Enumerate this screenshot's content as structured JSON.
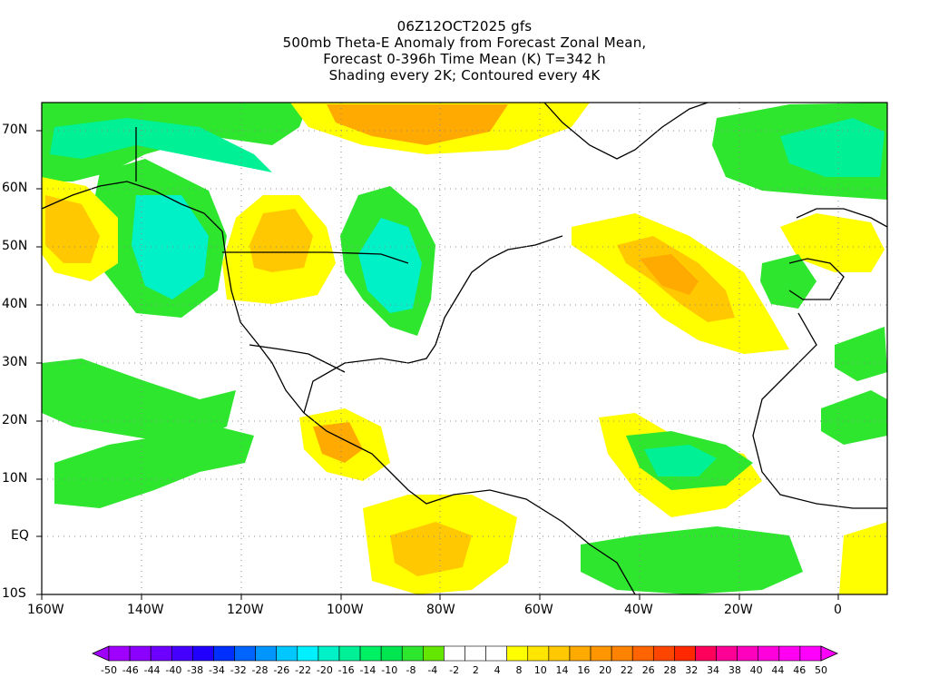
{
  "titles": {
    "line1": "06Z12OCT2025 gfs",
    "line2": "500mb Theta-E Anomaly from Forecast Zonal Mean,",
    "line3": "Forecast 0-396h Time Mean (K) T=342 h",
    "line4": "Shading every 2K; Contoured every 4K"
  },
  "axes": {
    "lat_labels": [
      "70N",
      "60N",
      "50N",
      "40N",
      "30N",
      "20N",
      "10N",
      "EQ",
      "10S"
    ],
    "lon_labels": [
      "160W",
      "140W",
      "120W",
      "100W",
      "80W",
      "60W",
      "40W",
      "20W",
      "0"
    ],
    "lon_range": [
      -160,
      10
    ],
    "lat_range": [
      -10,
      75
    ]
  },
  "colorbar": {
    "labels": [
      "-50",
      "-46",
      "-44",
      "-40",
      "-38",
      "-34",
      "-32",
      "-28",
      "-26",
      "-22",
      "-20",
      "-16",
      "-14",
      "-10",
      "-8",
      "-4",
      "-2",
      "2",
      "4",
      "8",
      "10",
      "14",
      "16",
      "20",
      "22",
      "26",
      "28",
      "32",
      "34",
      "38",
      "40",
      "44",
      "46",
      "50"
    ],
    "colors": [
      "#a000ff",
      "#8c00ff",
      "#6e00ff",
      "#4600ff",
      "#2000ff",
      "#0030ff",
      "#0064ff",
      "#0096ff",
      "#00c8ff",
      "#00f0ff",
      "#00f0c8",
      "#00f096",
      "#00f064",
      "#00e650",
      "#2ee62e",
      "#64e600",
      "#ffffff",
      "#ffffff",
      "#ffffff",
      "#ffff00",
      "#ffe600",
      "#ffc800",
      "#ffaa00",
      "#ff9600",
      "#ff8200",
      "#ff6400",
      "#ff4600",
      "#ff2800",
      "#ff005a",
      "#ff0096",
      "#ff00be",
      "#ff00dc",
      "#ff00f0",
      "#ff00ff"
    ]
  },
  "palette": {
    "green": "#2ee62e",
    "teal": "#00f096",
    "cyan": "#00f0c8",
    "yellow": "#ffff00",
    "gold": "#ffc800",
    "orange": "#ffaa00",
    "orange_dark": "#ff9600"
  }
}
